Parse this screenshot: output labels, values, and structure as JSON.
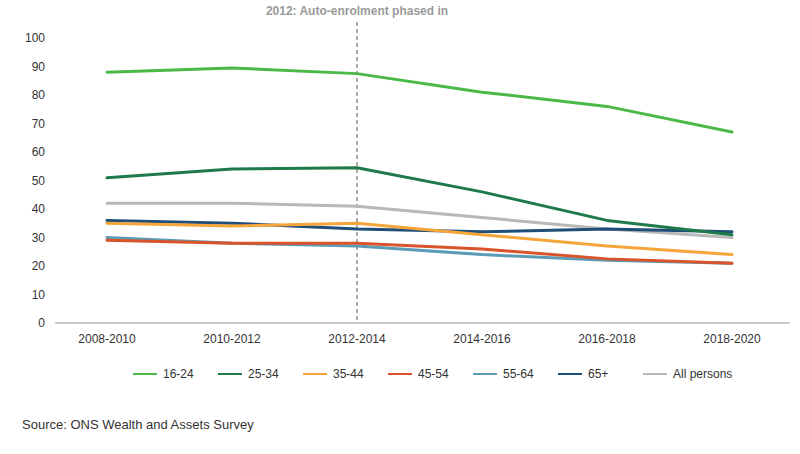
{
  "chart_data": {
    "type": "line",
    "categories": [
      "2008-2010",
      "2010-2012",
      "2012-2014",
      "2014-2016",
      "2016-2018",
      "2018-2020"
    ],
    "series": [
      {
        "name": "16-24",
        "color": "#4cb847",
        "values": [
          88,
          89.5,
          87.5,
          81,
          76,
          67
        ]
      },
      {
        "name": "25-34",
        "color": "#1e7a4a",
        "values": [
          51,
          54,
          54.5,
          46,
          36,
          31
        ]
      },
      {
        "name": "35-44",
        "color": "#f5a53a",
        "values": [
          35,
          34,
          35,
          31,
          27,
          24
        ]
      },
      {
        "name": "45-54",
        "color": "#d9542b",
        "values": [
          29,
          28,
          28,
          26,
          22.5,
          21
        ]
      },
      {
        "name": "55-64",
        "color": "#5b9bb5",
        "values": [
          30,
          28,
          27,
          24,
          22,
          21
        ]
      },
      {
        "name": "65+",
        "color": "#1f4e79",
        "values": [
          36,
          35,
          33,
          32,
          33,
          32
        ]
      },
      {
        "name": "All persons",
        "color": "#b8b8b8",
        "values": [
          42,
          42,
          41,
          37,
          33,
          30
        ]
      }
    ],
    "ylim": [
      0,
      100
    ],
    "yticks": [
      0,
      10,
      20,
      30,
      40,
      50,
      60,
      70,
      80,
      90,
      100
    ],
    "grid": false,
    "legend": "bottom",
    "annotations": [
      {
        "x": "2012-2014",
        "label": "2012: Auto-enrolment phased in"
      }
    ],
    "source": "Source: ONS Wealth and Assets Survey"
  }
}
